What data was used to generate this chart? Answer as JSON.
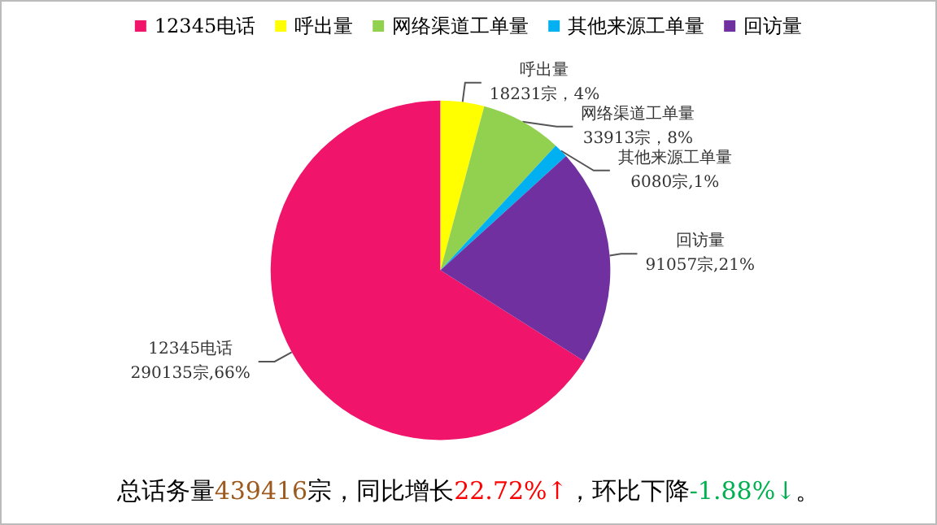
{
  "chart_data": {
    "type": "pie",
    "categories": [
      "12345电话",
      "呼出量",
      "网络渠道工单量",
      "其他来源工单量",
      "回访量"
    ],
    "values": [
      290135,
      18231,
      33913,
      6080,
      91057
    ],
    "colors": [
      "#f0146b",
      "#ffff00",
      "#92d050",
      "#00b0f0",
      "#7030a0"
    ],
    "value_labels": [
      "290135宗,66%",
      "18231宗，4%",
      "33913宗，8%",
      "6080宗,1%",
      "91057宗,21%"
    ],
    "legend": "top",
    "annotations": [
      "总话务量439416宗，同比增长22.72%↑，环比下降-1.88%↓。"
    ]
  }
}
